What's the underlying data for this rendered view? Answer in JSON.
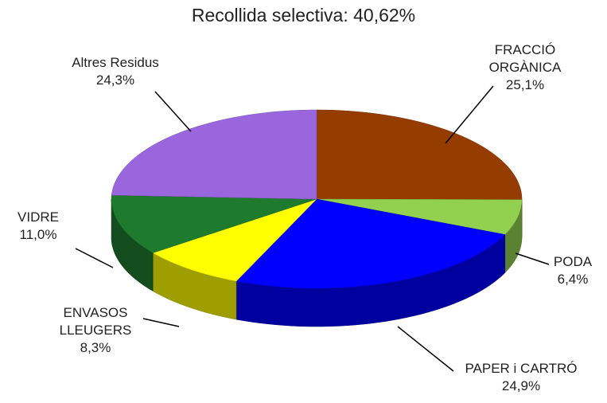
{
  "chart_data": {
    "type": "pie",
    "title": "Recollida selectiva: 40,62%",
    "categories": [
      "FRACCIÓ ORGÀNICA",
      "PODA",
      "PAPER i CARTRÓ",
      "ENVASOS LLEUGERS",
      "VIDRE",
      "Altres Residus"
    ],
    "values": [
      25.1,
      6.4,
      24.9,
      8.3,
      11.0,
      24.3
    ],
    "value_labels": [
      "25,1%",
      "6,4%",
      "24,9%",
      "8,3%",
      "11,0%",
      "24,3%"
    ],
    "colors": [
      "#953c00",
      "#92d050",
      "#0000ff",
      "#ffff00",
      "#1e7b2e",
      "#9966dd"
    ]
  }
}
